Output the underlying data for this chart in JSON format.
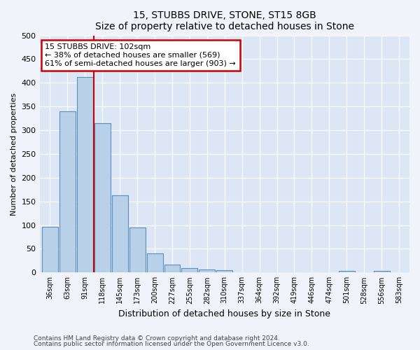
{
  "title": "15, STUBBS DRIVE, STONE, ST15 8GB",
  "subtitle": "Size of property relative to detached houses in Stone",
  "xlabel": "Distribution of detached houses by size in Stone",
  "ylabel": "Number of detached properties",
  "categories": [
    "36sqm",
    "63sqm",
    "91sqm",
    "118sqm",
    "145sqm",
    "173sqm",
    "200sqm",
    "227sqm",
    "255sqm",
    "282sqm",
    "310sqm",
    "337sqm",
    "364sqm",
    "392sqm",
    "419sqm",
    "446sqm",
    "474sqm",
    "501sqm",
    "528sqm",
    "556sqm",
    "583sqm"
  ],
  "values": [
    97,
    340,
    412,
    315,
    163,
    95,
    41,
    16,
    9,
    6,
    5,
    0,
    0,
    0,
    0,
    0,
    0,
    4,
    0,
    4,
    0
  ],
  "bar_color": "#b8d0e8",
  "bar_edge_color": "#5a8fc0",
  "vline_color": "#cc0000",
  "annotation_title": "15 STUBBS DRIVE: 102sqm",
  "annotation_line2": "← 38% of detached houses are smaller (569)",
  "annotation_line3": "61% of semi-detached houses are larger (903) →",
  "annotation_box_color": "#ffffff",
  "annotation_box_edgecolor": "#cc0000",
  "ylim": [
    0,
    500
  ],
  "yticks": [
    0,
    50,
    100,
    150,
    200,
    250,
    300,
    350,
    400,
    450,
    500
  ],
  "footnote1": "Contains HM Land Registry data © Crown copyright and database right 2024.",
  "footnote2": "Contains public sector information licensed under the Open Government Licence v3.0.",
  "fig_bg_color": "#f0f4fa",
  "plot_bg_color": "#dce6f5"
}
